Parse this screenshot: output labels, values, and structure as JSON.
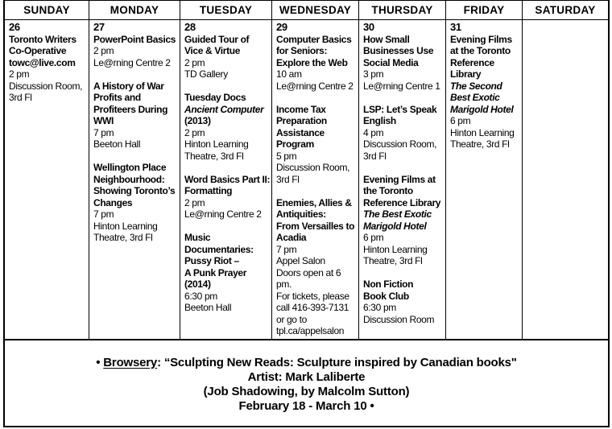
{
  "days": [
    {
      "name": "SUNDAY",
      "date": "26",
      "events": [
        {
          "lines": [
            {
              "t": "Toronto Writers",
              "s": "b"
            },
            {
              "t": "Co-Operative",
              "s": "b"
            },
            {
              "t": "towc@live.com",
              "s": "b"
            },
            {
              "t": "2 pm",
              "s": "n"
            },
            {
              "t": "Discussion Room,",
              "s": "n"
            },
            {
              "t": "3rd Fl",
              "s": "n"
            }
          ]
        }
      ]
    },
    {
      "name": "MONDAY",
      "date": "27",
      "events": [
        {
          "lines": [
            {
              "t": "PowerPoint Basics",
              "s": "b"
            },
            {
              "t": "2 pm",
              "s": "n"
            },
            {
              "t": "Le@rning Centre 2",
              "s": "n"
            }
          ]
        },
        {
          "lines": [
            {
              "t": "A History of War",
              "s": "b"
            },
            {
              "t": "Profits and",
              "s": "b"
            },
            {
              "t": "Profiteers During",
              "s": "b"
            },
            {
              "t": "WWI",
              "s": "b"
            },
            {
              "t": "7 pm",
              "s": "n"
            },
            {
              "t": "Beeton Hall",
              "s": "n"
            }
          ]
        },
        {
          "lines": [
            {
              "t": "Wellington Place",
              "s": "b"
            },
            {
              "t": "Neighbourhood:",
              "s": "b"
            },
            {
              "t": "Showing Toronto’s",
              "s": "b"
            },
            {
              "t": "Changes",
              "s": "b"
            },
            {
              "t": "7 pm",
              "s": "n"
            },
            {
              "t": "Hinton Learning",
              "s": "n"
            },
            {
              "t": "Theatre, 3rd Fl",
              "s": "n"
            }
          ]
        }
      ]
    },
    {
      "name": "TUESDAY",
      "date": "28",
      "events": [
        {
          "lines": [
            {
              "t": "Guided Tour of",
              "s": "b"
            },
            {
              "t": "Vice & Virtue",
              "s": "b"
            },
            {
              "t": "2 pm",
              "s": "n"
            },
            {
              "t": "TD Gallery",
              "s": "n"
            }
          ]
        },
        {
          "lines": [
            {
              "t": "Tuesday Docs",
              "s": "b"
            },
            {
              "t": "Ancient Computer",
              "s": "i"
            },
            {
              "t": "(2013)",
              "s": "b"
            },
            {
              "t": "2 pm",
              "s": "n"
            },
            {
              "t": "Hinton Learning",
              "s": "n"
            },
            {
              "t": "Theatre, 3rd Fl",
              "s": "n"
            }
          ]
        },
        {
          "lines": [
            {
              "t": "Word Basics Part II:",
              "s": "b"
            },
            {
              "t": "Formatting",
              "s": "b"
            },
            {
              "t": "2 pm",
              "s": "n"
            },
            {
              "t": "Le@rning Centre 2",
              "s": "n"
            }
          ]
        },
        {
          "lines": [
            {
              "t": "Music",
              "s": "b"
            },
            {
              "t": "Documentaries:",
              "s": "b"
            },
            {
              "t": "Pussy Riot –",
              "s": "b"
            },
            {
              "t": "A Punk Prayer",
              "s": "b"
            },
            {
              "t": "(2014)",
              "s": "b"
            },
            {
              "t": "6:30 pm",
              "s": "n"
            },
            {
              "t": "Beeton Hall",
              "s": "n"
            }
          ]
        }
      ]
    },
    {
      "name": "WEDNESDAY",
      "date": "29",
      "events": [
        {
          "lines": [
            {
              "t": "Computer Basics",
              "s": "b"
            },
            {
              "t": "for Seniors:",
              "s": "b"
            },
            {
              "t": "Explore the Web",
              "s": "b"
            },
            {
              "t": "10 am",
              "s": "n"
            },
            {
              "t": "Le@rning Centre 2",
              "s": "n"
            }
          ]
        },
        {
          "lines": [
            {
              "t": "Income Tax",
              "s": "b"
            },
            {
              "t": "Preparation",
              "s": "b"
            },
            {
              "t": "Assistance",
              "s": "b"
            },
            {
              "t": "Program",
              "s": "b"
            },
            {
              "t": "5 pm",
              "s": "n"
            },
            {
              "t": "Discussion Room,",
              "s": "n"
            },
            {
              "t": "3rd Fl",
              "s": "n"
            }
          ]
        },
        {
          "lines": [
            {
              "t": "Enemies, Allies &",
              "s": "b"
            },
            {
              "t": "Antiquities:",
              "s": "b"
            },
            {
              "t": "From Versailles to",
              "s": "b"
            },
            {
              "t": "Acadia",
              "s": "b"
            },
            {
              "t": "7 pm",
              "s": "n"
            },
            {
              "t": "Appel Salon",
              "s": "n"
            },
            {
              "t": "Doors open at 6",
              "s": "n"
            },
            {
              "t": "pm.",
              "s": "n"
            },
            {
              "t": "For tickets, please",
              "s": "n"
            },
            {
              "t": "call 416-393-7131",
              "s": "n"
            },
            {
              "t": "or go to",
              "s": "n"
            },
            {
              "t": "tpl.ca/appelsalon",
              "s": "n"
            }
          ]
        }
      ]
    },
    {
      "name": "THURSDAY",
      "date": "30",
      "events": [
        {
          "lines": [
            {
              "t": "How Small",
              "s": "b"
            },
            {
              "t": "Businesses Use",
              "s": "b"
            },
            {
              "t": "Social Media",
              "s": "b"
            },
            {
              "t": "3 pm",
              "s": "n"
            },
            {
              "t": "Le@rning Centre 1",
              "s": "n"
            }
          ]
        },
        {
          "lines": [
            {
              "t": "LSP: Let’s Speak",
              "s": "b"
            },
            {
              "t": "English",
              "s": "b"
            },
            {
              "t": "4 pm",
              "s": "n"
            },
            {
              "t": "Discussion Room,",
              "s": "n"
            },
            {
              "t": "3rd Fl",
              "s": "n"
            }
          ]
        },
        {
          "lines": [
            {
              "t": "Evening Films at",
              "s": "b"
            },
            {
              "t": "the Toronto",
              "s": "b"
            },
            {
              "t": "Reference Library",
              "s": "b"
            },
            {
              "t": "The Best Exotic",
              "s": "i"
            },
            {
              "t": "Marigold Hotel",
              "s": "i"
            },
            {
              "t": "6 pm",
              "s": "n"
            },
            {
              "t": "Hinton Learning",
              "s": "n"
            },
            {
              "t": "Theatre, 3rd Fl",
              "s": "n"
            }
          ]
        },
        {
          "lines": [
            {
              "t": "Non Fiction",
              "s": "b"
            },
            {
              "t": "Book Club",
              "s": "b"
            },
            {
              "t": "6:30 pm",
              "s": "n"
            },
            {
              "t": "Discussion Room",
              "s": "n"
            }
          ]
        }
      ]
    },
    {
      "name": "FRIDAY",
      "date": "31",
      "events": [
        {
          "lines": [
            {
              "t": "Evening Films",
              "s": "b"
            },
            {
              "t": "at the Toronto",
              "s": "b"
            },
            {
              "t": "Reference",
              "s": "b"
            },
            {
              "t": "Library",
              "s": "b"
            },
            {
              "t": "The Second",
              "s": "i"
            },
            {
              "t": "Best Exotic",
              "s": "i"
            },
            {
              "t": "Marigold Hotel",
              "s": "i"
            },
            {
              "t": "6 pm",
              "s": "n"
            },
            {
              "t": "Hinton Learning",
              "s": "n"
            },
            {
              "t": "Theatre, 3rd Fl",
              "s": "n"
            }
          ]
        }
      ]
    },
    {
      "name": "SATURDAY",
      "date": "",
      "events": []
    }
  ],
  "footer": {
    "bullet_start": "• ",
    "browsery": "Browsery",
    "line1_rest": ": “Sculpting New Reads: Sculpture inspired by Canadian books\"",
    "line2": "Artist: Mark Laliberte",
    "line3": "(Job Shadowing, by Malcolm Sutton)",
    "line4": "February 18 - March 10 •"
  }
}
